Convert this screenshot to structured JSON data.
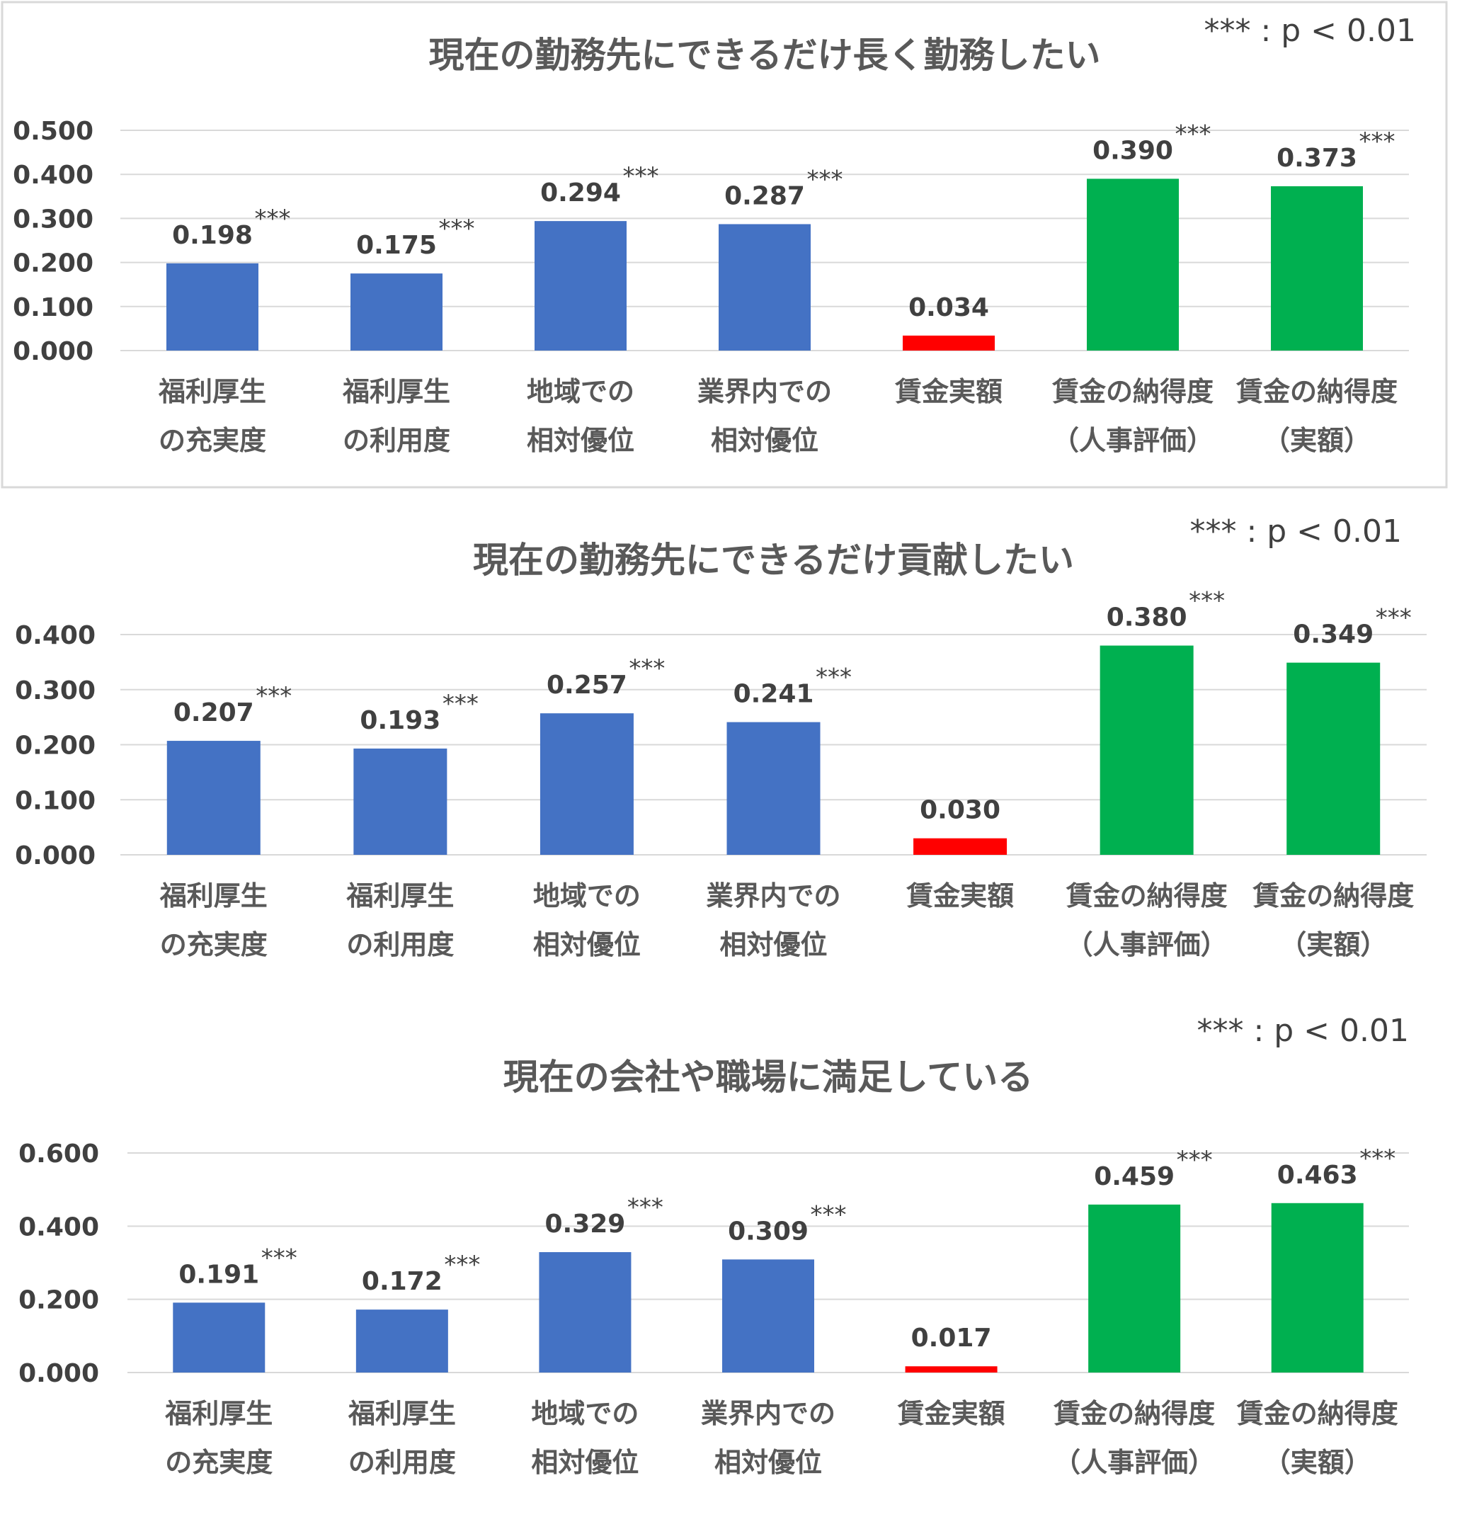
{
  "significance_note": "*** : p < 0.01",
  "colors": {
    "blue": "#4472C4",
    "red": "#FF0000",
    "green": "#00B050"
  },
  "chart_data": [
    {
      "type": "bar",
      "title": "現在の勤務先にできるだけ長く勤務したい",
      "significance_note": "*** : p < 0.01",
      "categories": [
        [
          "福利厚生",
          "の充実度"
        ],
        [
          "福利厚生",
          "の利用度"
        ],
        [
          "地域での",
          "相対優位"
        ],
        [
          "業界内での",
          "相対優位"
        ],
        [
          "賃金実額",
          ""
        ],
        [
          "賃金の納得度",
          "（人事評価）"
        ],
        [
          "賃金の納得度",
          "（実額）"
        ]
      ],
      "values": [
        0.198,
        0.175,
        0.294,
        0.287,
        0.034,
        0.39,
        0.373
      ],
      "value_labels": [
        "0.198",
        "0.175",
        "0.294",
        "0.287",
        "0.034",
        "0.390",
        "0.373"
      ],
      "significance": [
        "***",
        "***",
        "***",
        "***",
        "",
        "***",
        "***"
      ],
      "bar_colors": [
        "blue",
        "blue",
        "blue",
        "blue",
        "red",
        "green",
        "green"
      ],
      "yticks": [
        "0.000",
        "0.100",
        "0.200",
        "0.300",
        "0.400",
        "0.500"
      ],
      "ylim": [
        0,
        0.5
      ],
      "grid": true
    },
    {
      "type": "bar",
      "title": "現在の勤務先にできるだけ貢献したい",
      "significance_note": "*** : p < 0.01",
      "categories": [
        [
          "福利厚生",
          "の充実度"
        ],
        [
          "福利厚生",
          "の利用度"
        ],
        [
          "地域での",
          "相対優位"
        ],
        [
          "業界内での",
          "相対優位"
        ],
        [
          "賃金実額",
          ""
        ],
        [
          "賃金の納得度",
          "（人事評価）"
        ],
        [
          "賃金の納得度",
          "（実額）"
        ]
      ],
      "values": [
        0.207,
        0.193,
        0.257,
        0.241,
        0.03,
        0.38,
        0.349
      ],
      "value_labels": [
        "0.207",
        "0.193",
        "0.257",
        "0.241",
        "0.030",
        "0.380",
        "0.349"
      ],
      "significance": [
        "***",
        "***",
        "***",
        "***",
        "",
        "***",
        "***"
      ],
      "bar_colors": [
        "blue",
        "blue",
        "blue",
        "blue",
        "red",
        "green",
        "green"
      ],
      "yticks": [
        "0.000",
        "0.100",
        "0.200",
        "0.300",
        "0.400"
      ],
      "ylim": [
        0,
        0.4
      ],
      "grid": true
    },
    {
      "type": "bar",
      "title": "現在の会社や職場に満足している",
      "significance_note": "*** : p < 0.01",
      "categories": [
        [
          "福利厚生",
          "の充実度"
        ],
        [
          "福利厚生",
          "の利用度"
        ],
        [
          "地域での",
          "相対優位"
        ],
        [
          "業界内での",
          "相対優位"
        ],
        [
          "賃金実額",
          ""
        ],
        [
          "賃金の納得度",
          "（人事評価）"
        ],
        [
          "賃金の納得度",
          "（実額）"
        ]
      ],
      "values": [
        0.191,
        0.172,
        0.329,
        0.309,
        0.017,
        0.459,
        0.463
      ],
      "value_labels": [
        "0.191",
        "0.172",
        "0.329",
        "0.309",
        "0.017",
        "0.459",
        "0.463"
      ],
      "significance": [
        "***",
        "***",
        "***",
        "***",
        "",
        "***",
        "***"
      ],
      "bar_colors": [
        "blue",
        "blue",
        "blue",
        "blue",
        "red",
        "green",
        "green"
      ],
      "yticks": [
        "0.000",
        "0.200",
        "0.400",
        "0.600"
      ],
      "ylim": [
        0,
        0.6
      ],
      "grid": true
    }
  ]
}
